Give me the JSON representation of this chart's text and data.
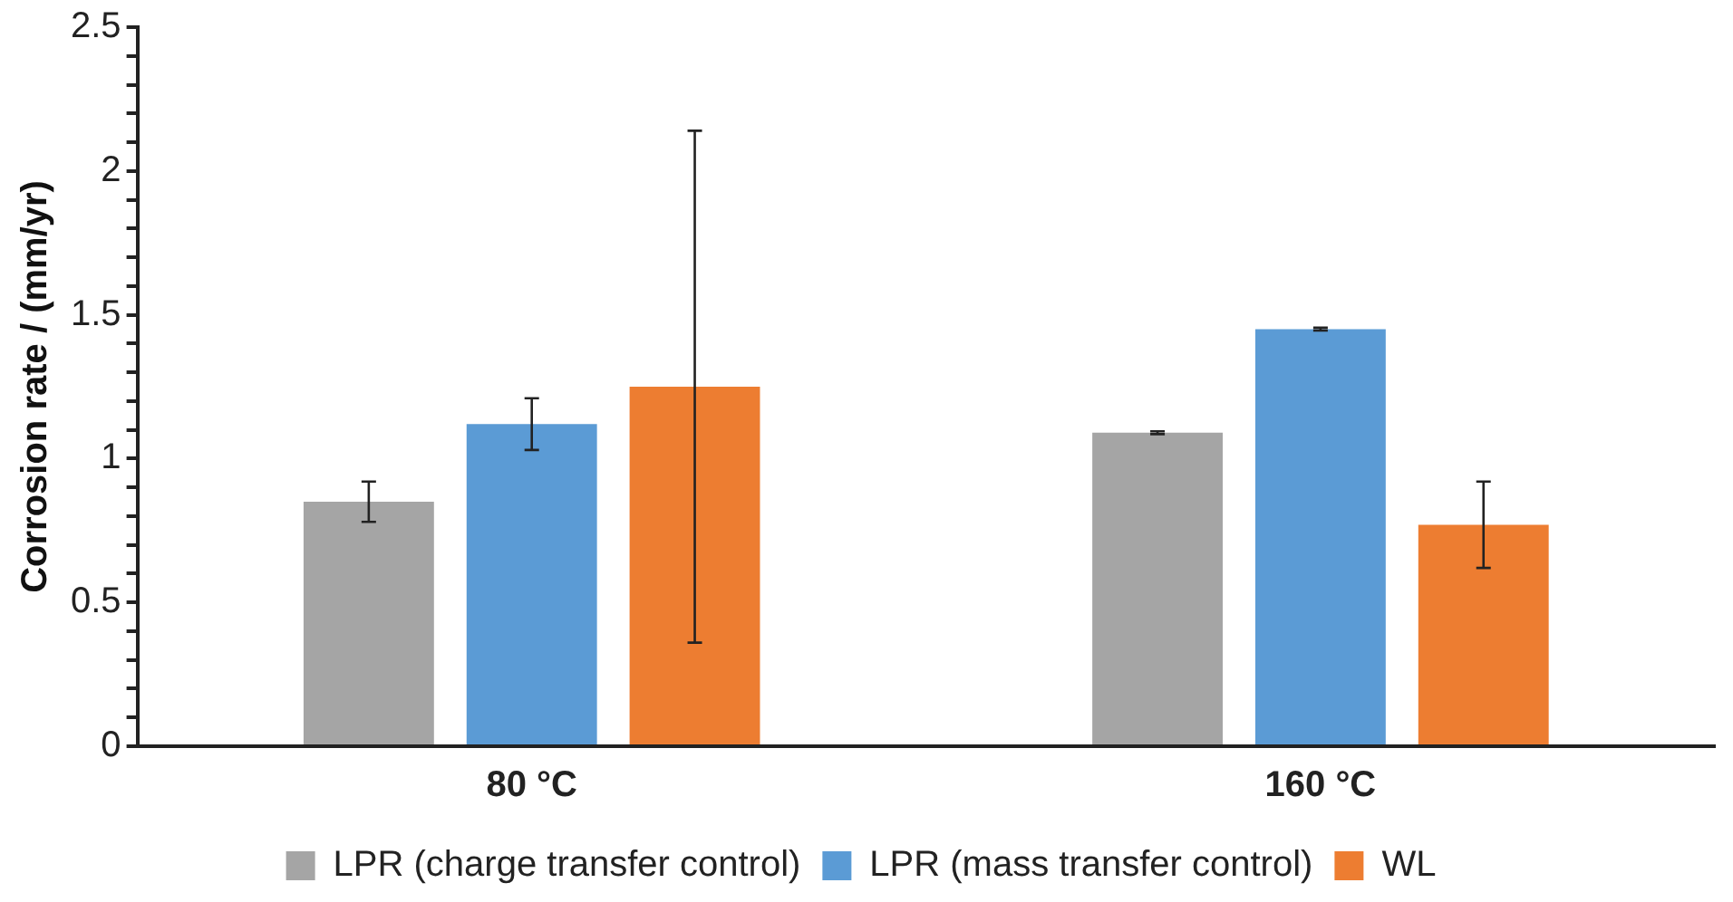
{
  "chart_data": {
    "type": "bar",
    "ylabel": "Corrosion rate / (mm/yr)",
    "categories": [
      "80 °C",
      "160 °C"
    ],
    "series": [
      {
        "name": "LPR (charge transfer control)",
        "color": "#a5a5a5",
        "values": [
          0.85,
          1.09
        ],
        "errors": [
          0.07,
          0.005
        ]
      },
      {
        "name": "LPR (mass transfer control)",
        "color": "#5b9bd5",
        "values": [
          1.12,
          1.45
        ],
        "errors": [
          0.09,
          0.005
        ]
      },
      {
        "name": "WL",
        "color": "#ed7d31",
        "values": [
          1.25,
          0.77
        ],
        "errors": [
          0.89,
          0.15
        ]
      }
    ],
    "ylim": [
      0,
      2.5
    ],
    "yticks": [
      0,
      {
        "value": 0.1,
        "label": null
      },
      {
        "value": 0.2,
        "label": null
      },
      {
        "value": 0.3,
        "label": null
      },
      {
        "value": 0.4,
        "label": null
      },
      0.5,
      {
        "value": 0.6,
        "label": null
      },
      {
        "value": 0.7,
        "label": null
      },
      {
        "value": 0.8,
        "label": null
      },
      {
        "value": 0.9,
        "label": null
      },
      1,
      {
        "value": 1.1,
        "label": null
      },
      {
        "value": 1.2,
        "label": null
      },
      {
        "value": 1.3,
        "label": null
      },
      {
        "value": 1.4,
        "label": null
      },
      1.5,
      {
        "value": 1.6,
        "label": null
      },
      {
        "value": 1.7,
        "label": null
      },
      {
        "value": 1.8,
        "label": null
      },
      {
        "value": 1.9,
        "label": null
      },
      2,
      {
        "value": 2.1,
        "label": null
      },
      {
        "value": 2.2,
        "label": null
      },
      {
        "value": 2.3,
        "label": null
      },
      {
        "value": 2.4,
        "label": null
      },
      2.5
    ],
    "grid": false,
    "legend": "bottom"
  }
}
